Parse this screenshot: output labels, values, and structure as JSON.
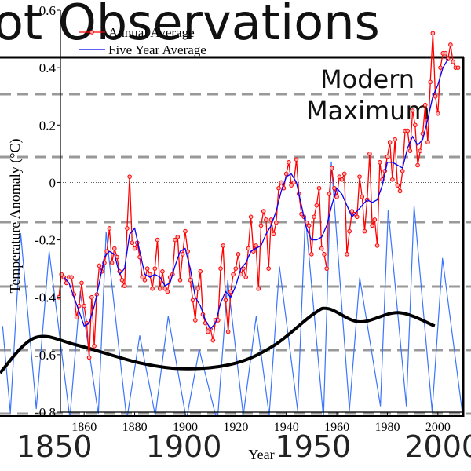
{
  "chart_data": [
    {
      "type": "line",
      "title": "ot Observations",
      "annotation": [
        "Modern",
        "Maximum"
      ],
      "xlim": [
        1829,
        2011
      ],
      "xticks": [
        1850,
        1900,
        1950,
        2000
      ],
      "ylim": [
        0,
        300
      ],
      "series": [
        {
          "color": "#3a74ff",
          "smooth": false,
          "x": [
            1830,
            1833,
            1837,
            1843,
            1848,
            1856,
            1860,
            1867,
            1870,
            1878,
            1883,
            1889,
            1894,
            1901,
            1906,
            1913,
            1917,
            1923,
            1928,
            1933,
            1937,
            1944,
            1947,
            1954,
            1957,
            1964,
            1968,
            1976,
            1979,
            1986,
            1989,
            1996,
            2000,
            2008
          ],
          "values": [
            71,
            8,
            138,
            11,
            125,
            4,
            96,
            7,
            139,
            3,
            64,
            6,
            78,
            3,
            54,
            1,
            104,
            6,
            78,
            6,
            114,
            10,
            151,
            4,
            190,
            10,
            106,
            13,
            155,
            13,
            158,
            9,
            120,
            3
          ]
        },
        {
          "color": "#000000",
          "smooth": true,
          "x": [
            1829,
            1842.5,
            1859,
            1883.5,
            1901.7,
            1920,
            1935,
            1950,
            1956,
            1968,
            1983,
            1997
          ],
          "values": [
            37,
            62.5,
            57,
            44,
            40,
            44,
            57,
            79.5,
            83.5,
            74,
            80.7,
            71
          ]
        }
      ]
    },
    {
      "type": "line",
      "xlabel": "Year",
      "ylabel": "Temperature Anomaly (°C)",
      "xlim": [
        1850,
        2010
      ],
      "xticks": [
        1860,
        1880,
        1900,
        1920,
        1940,
        1960,
        1980,
        2000
      ],
      "ylim": [
        -0.8,
        0.6
      ],
      "yticks": [
        -0.8,
        -0.6,
        -0.4,
        -0.2,
        0,
        0.2,
        0.4,
        0.6
      ],
      "series": [
        {
          "name": "Annual Average",
          "color": "#ff0000",
          "markers": true,
          "x": [
            1850,
            1851,
            1852,
            1853,
            1854,
            1855,
            1856,
            1857,
            1858,
            1859,
            1860,
            1861,
            1862,
            1863,
            1864,
            1865,
            1866,
            1867,
            1868,
            1869,
            1870,
            1871,
            1872,
            1873,
            1874,
            1875,
            1876,
            1877,
            1878,
            1879,
            1880,
            1881,
            1882,
            1883,
            1884,
            1885,
            1886,
            1887,
            1888,
            1889,
            1890,
            1891,
            1892,
            1893,
            1894,
            1895,
            1896,
            1897,
            1898,
            1899,
            1900,
            1901,
            1902,
            1903,
            1904,
            1905,
            1906,
            1907,
            1908,
            1909,
            1910,
            1911,
            1912,
            1913,
            1914,
            1915,
            1916,
            1917,
            1918,
            1919,
            1920,
            1921,
            1922,
            1923,
            1924,
            1925,
            1926,
            1927,
            1928,
            1929,
            1930,
            1931,
            1932,
            1933,
            1934,
            1935,
            1936,
            1937,
            1938,
            1939,
            1940,
            1941,
            1942,
            1943,
            1944,
            1945,
            1946,
            1947,
            1948,
            1949,
            1950,
            1951,
            1952,
            1953,
            1954,
            1955,
            1956,
            1957,
            1958,
            1959,
            1960,
            1961,
            1962,
            1963,
            1964,
            1965,
            1966,
            1967,
            1968,
            1969,
            1970,
            1971,
            1972,
            1973,
            1974,
            1975,
            1976,
            1977,
            1978,
            1979,
            1980,
            1981,
            1982,
            1983,
            1984,
            1985,
            1986,
            1987,
            1988,
            1989,
            1990,
            1991,
            1992,
            1993,
            1994,
            1995,
            1996,
            1997,
            1998,
            1999,
            2000,
            2001,
            2002,
            2003,
            2004,
            2005,
            2006,
            2007,
            2008
          ],
          "values": [
            -0.4,
            -0.32,
            -0.33,
            -0.35,
            -0.33,
            -0.33,
            -0.39,
            -0.47,
            -0.43,
            -0.35,
            -0.43,
            -0.49,
            -0.61,
            -0.4,
            -0.57,
            -0.39,
            -0.29,
            -0.31,
            -0.28,
            -0.24,
            -0.16,
            -0.28,
            -0.23,
            -0.26,
            -0.31,
            -0.34,
            -0.36,
            -0.16,
            0.02,
            -0.21,
            -0.23,
            -0.21,
            -0.26,
            -0.33,
            -0.34,
            -0.3,
            -0.32,
            -0.37,
            -0.3,
            -0.2,
            -0.37,
            -0.31,
            -0.37,
            -0.38,
            -0.33,
            -0.32,
            -0.2,
            -0.19,
            -0.34,
            -0.25,
            -0.17,
            -0.24,
            -0.34,
            -0.41,
            -0.48,
            -0.37,
            -0.31,
            -0.46,
            -0.49,
            -0.52,
            -0.51,
            -0.55,
            -0.48,
            -0.48,
            -0.3,
            -0.22,
            -0.41,
            -0.52,
            -0.38,
            -0.32,
            -0.3,
            -0.25,
            -0.32,
            -0.3,
            -0.33,
            -0.23,
            -0.12,
            -0.24,
            -0.22,
            -0.37,
            -0.15,
            -0.1,
            -0.13,
            -0.3,
            -0.13,
            -0.18,
            -0.14,
            -0.02,
            0.0,
            -0.02,
            0.03,
            0.07,
            -0.01,
            0.0,
            0.08,
            -0.04,
            -0.11,
            -0.12,
            -0.14,
            -0.15,
            -0.25,
            -0.12,
            -0.08,
            -0.02,
            -0.23,
            -0.25,
            -0.3,
            -0.04,
            0.05,
            -0.02,
            -0.05,
            0.02,
            0.01,
            0.03,
            -0.25,
            -0.17,
            -0.1,
            -0.11,
            -0.12,
            0.02,
            -0.05,
            -0.17,
            -0.06,
            0.1,
            -0.15,
            -0.13,
            -0.22,
            0.07,
            0.01,
            0.04,
            0.09,
            0.14,
            0.01,
            0.15,
            -0.01,
            -0.03,
            0.04,
            0.18,
            0.18,
            0.11,
            0.25,
            0.2,
            0.06,
            0.11,
            0.17,
            0.27,
            0.14,
            0.35,
            0.52,
            0.3,
            0.24,
            0.4,
            0.45,
            0.45,
            0.43,
            0.48,
            0.42,
            0.4,
            0.4
          ]
        },
        {
          "name": "Five Year Average",
          "color": "#0000ff",
          "markers": false,
          "x": [
            1852,
            1854,
            1856,
            1858,
            1860,
            1862,
            1864,
            1866,
            1868,
            1870,
            1872,
            1874,
            1876,
            1878,
            1880,
            1882,
            1884,
            1886,
            1888,
            1890,
            1892,
            1894,
            1896,
            1898,
            1900,
            1902,
            1904,
            1906,
            1908,
            1910,
            1912,
            1914,
            1916,
            1918,
            1920,
            1922,
            1924,
            1926,
            1928,
            1930,
            1932,
            1934,
            1936,
            1938,
            1940,
            1942,
            1944,
            1946,
            1948,
            1950,
            1952,
            1954,
            1956,
            1958,
            1960,
            1962,
            1964,
            1966,
            1968,
            1970,
            1972,
            1974,
            1976,
            1978,
            1980,
            1982,
            1984,
            1986,
            1988,
            1990,
            1992,
            1994,
            1996,
            1998,
            2000,
            2002,
            2004
          ],
          "values": [
            -0.33,
            -0.35,
            -0.4,
            -0.45,
            -0.5,
            -0.49,
            -0.43,
            -0.35,
            -0.26,
            -0.24,
            -0.25,
            -0.32,
            -0.3,
            -0.18,
            -0.16,
            -0.24,
            -0.32,
            -0.33,
            -0.32,
            -0.33,
            -0.36,
            -0.35,
            -0.29,
            -0.24,
            -0.23,
            -0.3,
            -0.4,
            -0.43,
            -0.48,
            -0.51,
            -0.49,
            -0.42,
            -0.38,
            -0.4,
            -0.36,
            -0.3,
            -0.28,
            -0.24,
            -0.23,
            -0.22,
            -0.18,
            -0.15,
            -0.1,
            -0.03,
            0.02,
            0.03,
            0.0,
            -0.08,
            -0.16,
            -0.2,
            -0.2,
            -0.19,
            -0.15,
            -0.08,
            -0.02,
            -0.04,
            -0.08,
            -0.12,
            -0.1,
            -0.08,
            -0.06,
            -0.07,
            -0.06,
            -0.01,
            0.07,
            0.07,
            0.06,
            0.05,
            0.12,
            0.16,
            0.13,
            0.15,
            0.22,
            0.3,
            0.34,
            0.4,
            0.43
          ]
        }
      ]
    }
  ]
}
